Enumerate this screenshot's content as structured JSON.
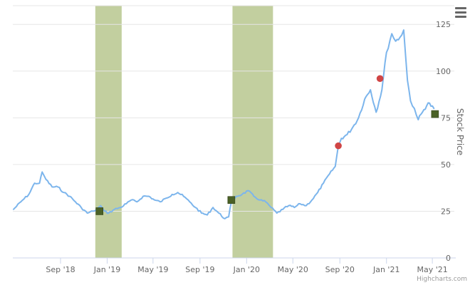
{
  "chart_data": {
    "type": "line",
    "ylabel": "Stock Price",
    "ylim": [
      0,
      135
    ],
    "yticks": [
      0,
      25,
      50,
      75,
      100,
      125
    ],
    "xticks": [
      "Sep '18",
      "Jan '19",
      "May '19",
      "Sep '19",
      "Jan '20",
      "May '20",
      "Sep '20",
      "Jan '21",
      "May '21"
    ],
    "grid": true,
    "legend": "none",
    "colors": {
      "line": "#7cb5ec",
      "band": "#c2cf9f",
      "square_marker": "#4a6126",
      "circle_marker": "#d04545",
      "grid": "#e6e6e6"
    },
    "series": [
      {
        "type": "line",
        "x": [
          "2018-05-01",
          "2018-05-20",
          "2018-06-10",
          "2018-06-25",
          "2018-07-08",
          "2018-07-15",
          "2018-07-25",
          "2018-08-10",
          "2018-08-25",
          "2018-09-10",
          "2018-09-25",
          "2018-10-10",
          "2018-10-25",
          "2018-11-10",
          "2018-11-25",
          "2018-12-05",
          "2018-12-15",
          "2018-12-25",
          "2019-01-05",
          "2019-01-20",
          "2019-02-05",
          "2019-02-20",
          "2019-03-05",
          "2019-03-20",
          "2019-04-05",
          "2019-04-20",
          "2019-05-05",
          "2019-05-20",
          "2019-06-05",
          "2019-06-20",
          "2019-07-05",
          "2019-07-20",
          "2019-08-05",
          "2019-08-20",
          "2019-09-05",
          "2019-09-20",
          "2019-10-05",
          "2019-10-20",
          "2019-11-05",
          "2019-11-15",
          "2019-11-22",
          "2019-12-05",
          "2019-12-20",
          "2020-01-05",
          "2020-01-20",
          "2020-02-05",
          "2020-02-20",
          "2020-03-05",
          "2020-03-20",
          "2020-04-05",
          "2020-04-20",
          "2020-05-05",
          "2020-05-20",
          "2020-06-05",
          "2020-06-20",
          "2020-07-05",
          "2020-07-20",
          "2020-08-05",
          "2020-08-20",
          "2020-08-28",
          "2020-09-05",
          "2020-09-20",
          "2020-10-05",
          "2020-10-20",
          "2020-11-05",
          "2020-11-20",
          "2020-12-05",
          "2020-12-20",
          "2021-01-01",
          "2021-01-15",
          "2021-01-25",
          "2021-02-05",
          "2021-02-15",
          "2021-02-25",
          "2021-03-05",
          "2021-03-15",
          "2021-03-25",
          "2021-04-05",
          "2021-04-20",
          "2021-05-05"
        ],
        "y": [
          26,
          30,
          34,
          40,
          40,
          46,
          42,
          38,
          38,
          35,
          33,
          30,
          27,
          24,
          25,
          26,
          28,
          25,
          24,
          26,
          27,
          29,
          31,
          30,
          33,
          33,
          31,
          30,
          32,
          34,
          35,
          33,
          30,
          27,
          24,
          23,
          27,
          24,
          21,
          22,
          30,
          33,
          34,
          36,
          33,
          31,
          30,
          27,
          24,
          26,
          28,
          27,
          29,
          28,
          31,
          35,
          40,
          45,
          49,
          60,
          64,
          66,
          70,
          75,
          85,
          90,
          78,
          90,
          110,
          120,
          116,
          118,
          122,
          95,
          84,
          80,
          74,
          78,
          83,
          80
        ]
      }
    ],
    "bands": [
      {
        "from": "2018-12-01",
        "to": "2019-02-08"
      },
      {
        "from": "2019-11-25",
        "to": "2020-03-10"
      }
    ],
    "square_markers": [
      {
        "x": "2018-12-12",
        "y": 25
      },
      {
        "x": "2019-11-22",
        "y": 31
      },
      {
        "x": "2021-05-08",
        "y": 77
      }
    ],
    "circle_markers": [
      {
        "x": "2020-08-28",
        "y": 60
      },
      {
        "x": "2020-12-15",
        "y": 96
      }
    ]
  },
  "credits": "Highcharts.com"
}
